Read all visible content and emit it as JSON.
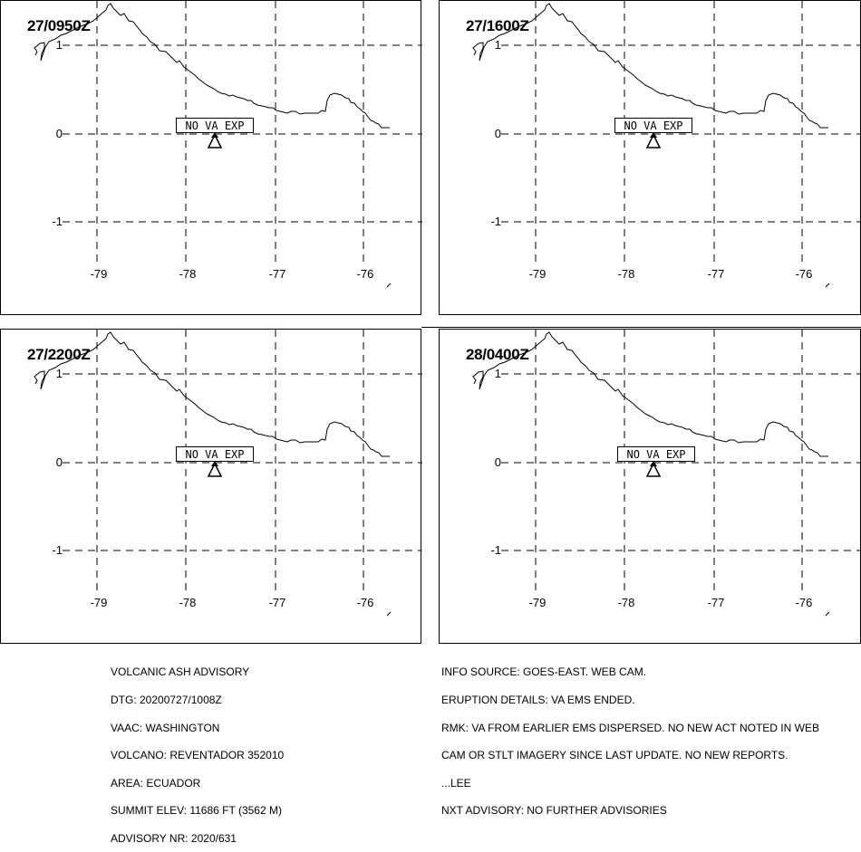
{
  "panels": [
    {
      "time": "27/0950Z",
      "status": "NO VA EXP"
    },
    {
      "time": "27/1600Z",
      "status": "NO VA EXP"
    },
    {
      "time": "27/2200Z",
      "status": "NO VA EXP"
    },
    {
      "time": "28/0400Z",
      "status": "NO VA EXP"
    }
  ],
  "map": {
    "lat_labels": [
      "1",
      "0",
      "-1"
    ],
    "lon_labels": [
      "-79",
      "-78",
      "-77",
      "-76"
    ],
    "lat_values": [
      1,
      0,
      -1
    ],
    "lon_values": [
      -79,
      -78,
      -77,
      -76
    ],
    "coastline_color": "#000000",
    "grid_style": "dashed",
    "volcano_icon": "triangle-volcano-symbol"
  },
  "advisory": {
    "left_lines": [
      "VOLCANIC ASH ADVISORY",
      "DTG: 20200727/1008Z",
      "VAAC: WASHINGTON",
      "VOLCANO: REVENTADOR 352010",
      "AREA: ECUADOR",
      "SUMMIT ELEV: 11686 FT (3562 M)",
      "ADVISORY NR: 2020/631"
    ],
    "right_lines": [
      "INFO SOURCE: GOES-EAST. WEB CAM.",
      "ERUPTION DETAILS: VA EMS ENDED.",
      "RMK: VA FROM EARLIER EMS DISPERSED. NO NEW ACT NOTED IN WEB",
      "CAM OR STLT IMAGERY SINCE LAST UPDATE. NO NEW REPORTS.",
      "...LEE",
      "NXT ADVISORY: NO FURTHER ADVISORIES"
    ]
  }
}
